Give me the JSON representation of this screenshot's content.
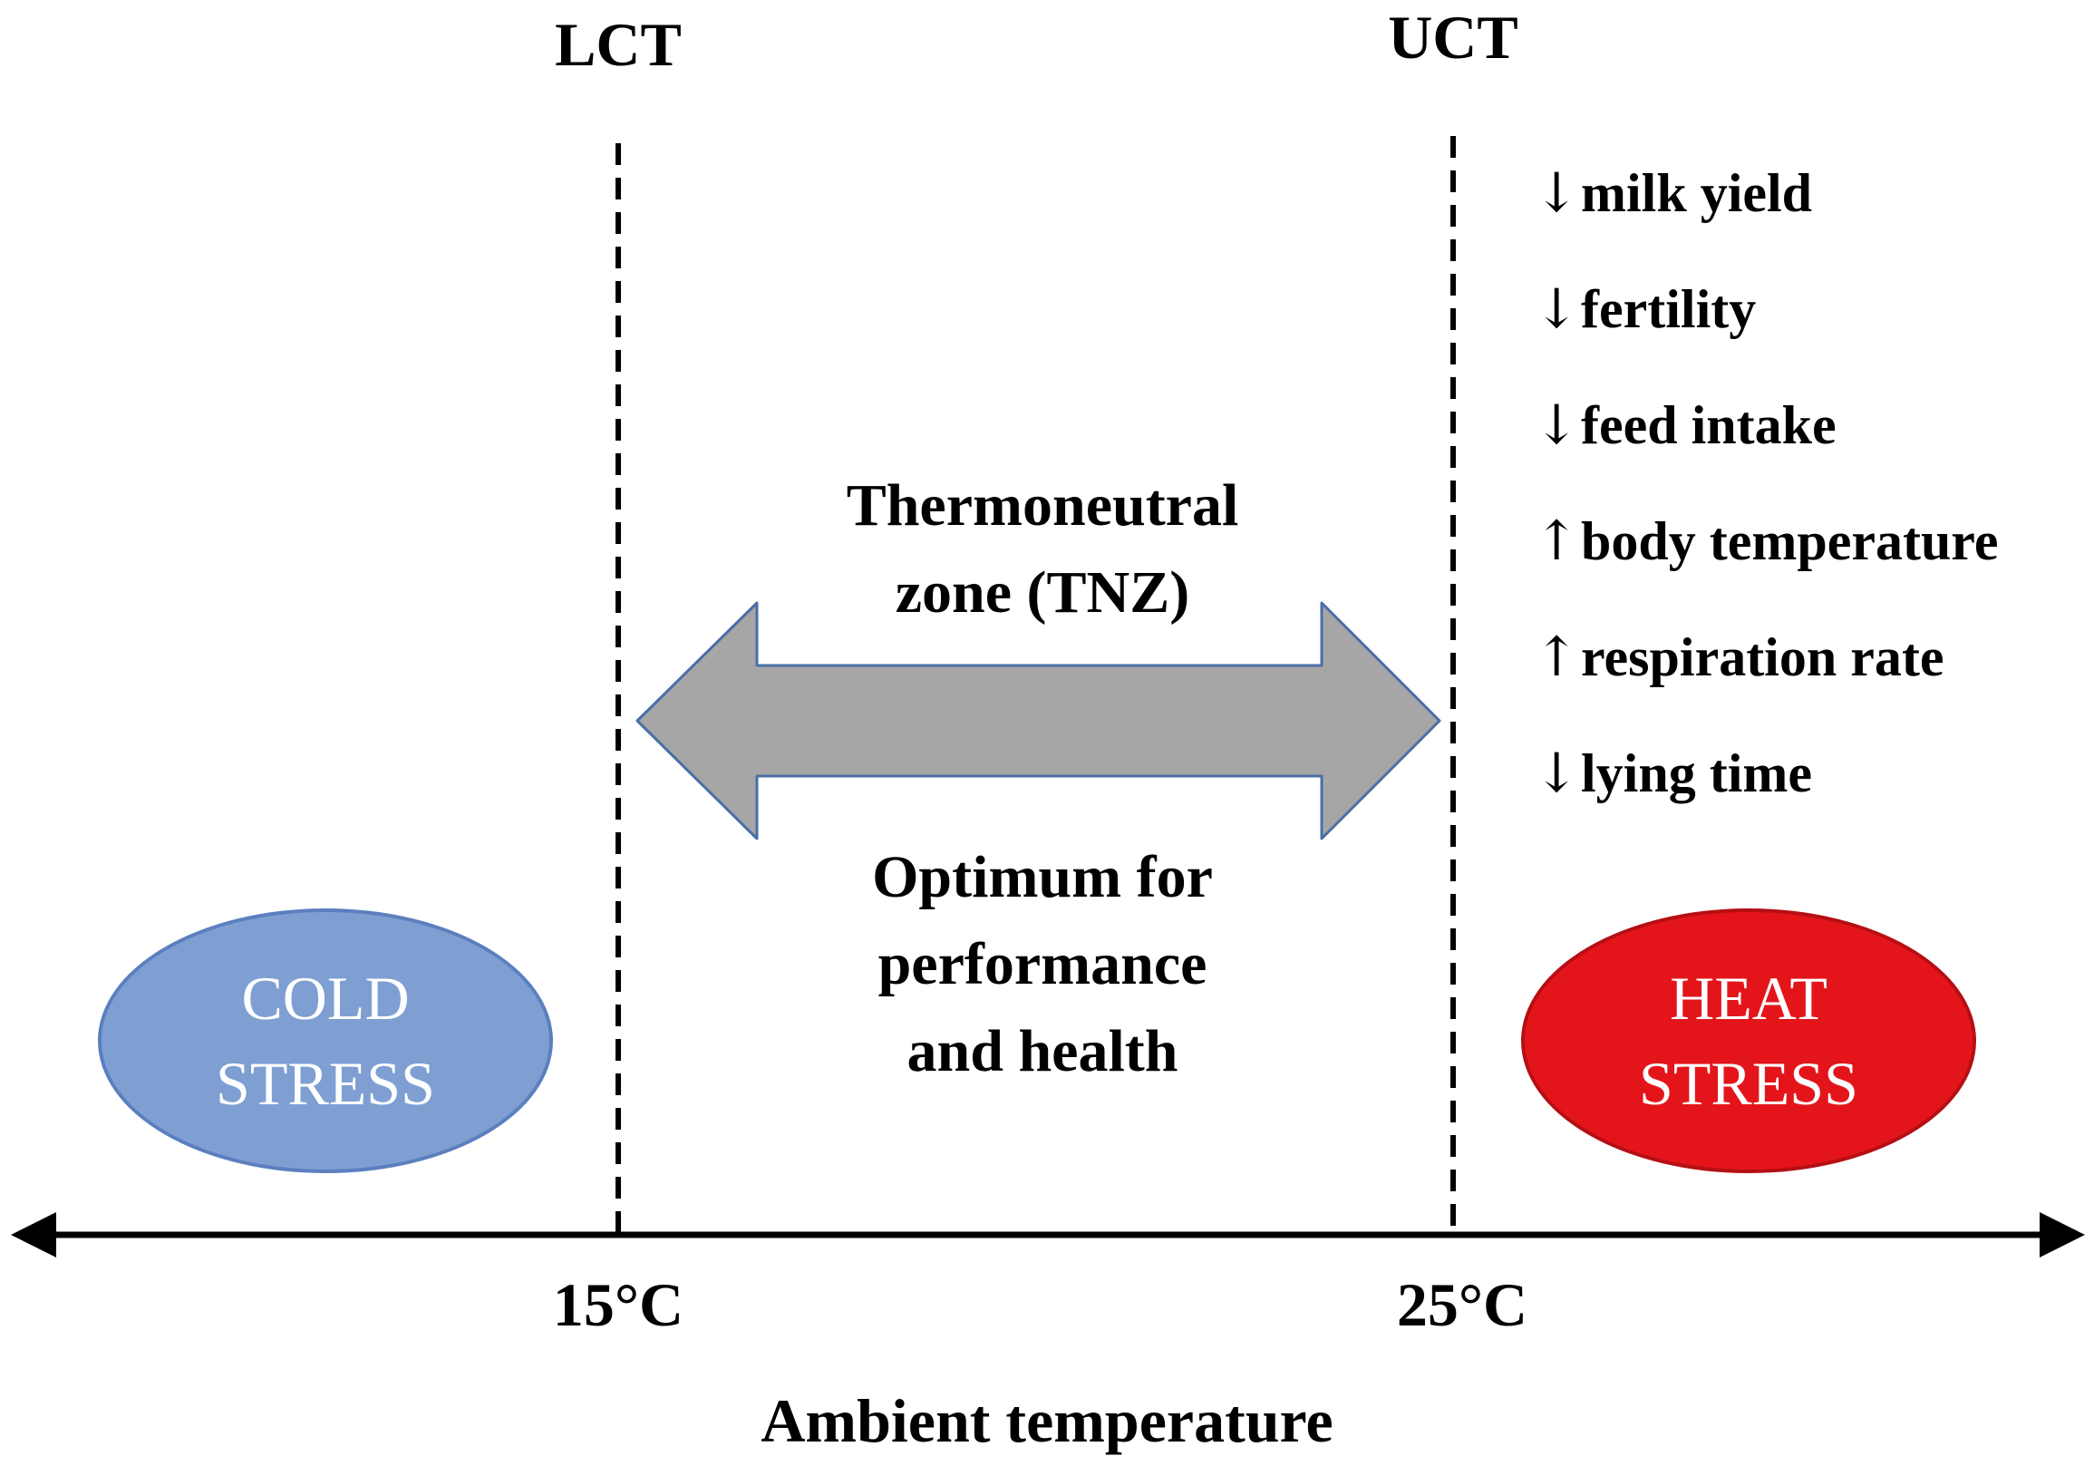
{
  "thresholds": {
    "lower": "LCT",
    "upper": "UCT",
    "lower_temp": "15°C",
    "upper_temp": "25°C"
  },
  "axis": {
    "label": "Ambient temperature"
  },
  "tnz": {
    "title_line1": "Thermoneutral",
    "title_line2": "zone (TNZ)",
    "desc_line1": "Optimum for",
    "desc_line2": "performance",
    "desc_line3": "and health",
    "arrow_color": "#a6a6a6",
    "arrow_border": "#4a6fa5"
  },
  "cold_stress": {
    "line1": "COLD",
    "line2": "STRESS",
    "color": "#7f9fd3",
    "border": "#5b7fbf"
  },
  "heat_stress": {
    "line1": "HEAT",
    "line2": "STRESS",
    "color": "#e3151b",
    "border": "#b50f14"
  },
  "effects": [
    {
      "arrow": "↓",
      "text": "milk yield"
    },
    {
      "arrow": "↓",
      "text": "fertility"
    },
    {
      "arrow": "↓",
      "text": "feed intake"
    },
    {
      "arrow": "↑",
      "text": "body temperature"
    },
    {
      "arrow": "↑",
      "text": "respiration rate"
    },
    {
      "arrow": "↓",
      "text": "lying time"
    }
  ]
}
